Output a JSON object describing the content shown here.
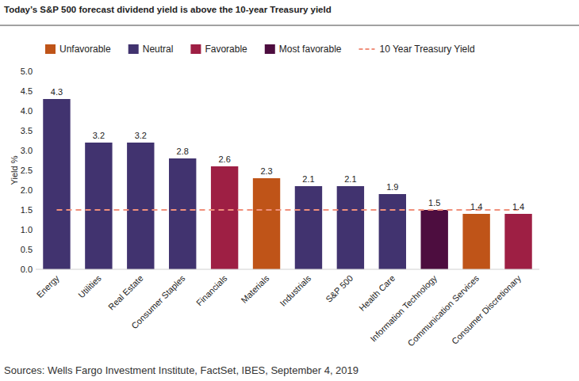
{
  "chart_data": {
    "type": "bar",
    "title": "Today’s S&P 500 forecast dividend yield is above the 10-year Treasury yield",
    "y_label": "Yield %",
    "source": "Sources: Wells Fargo Investment Institute, FactSet, IBES, September 4, 2019",
    "categories": [
      "Energy",
      "Utilities",
      "Real Estate",
      "Consumer Staples",
      "Financials",
      "Materials",
      "Industrials",
      "S&P 500",
      "Health Care",
      "Information Technology",
      "Communication Services",
      "Consumer Discretionary"
    ],
    "series": [
      {
        "name": "Unfavorable",
        "color": "#bf5418",
        "values": [
          null,
          null,
          null,
          null,
          null,
          2.3,
          null,
          null,
          null,
          null,
          1.4,
          null
        ]
      },
      {
        "name": "Neutral",
        "color": "#41336f",
        "values": [
          4.3,
          3.2,
          3.2,
          2.8,
          null,
          null,
          2.1,
          2.1,
          1.9,
          null,
          null,
          null
        ]
      },
      {
        "name": "Favorable",
        "color": "#9e1f44",
        "values": [
          null,
          null,
          null,
          null,
          2.6,
          null,
          null,
          null,
          null,
          null,
          null,
          1.4
        ]
      },
      {
        "name": "Most favorable",
        "color": "#4d0d3f",
        "values": [
          null,
          null,
          null,
          null,
          null,
          null,
          null,
          null,
          null,
          1.5,
          null,
          null
        ]
      },
      {
        "name": "10 Year Treasury Yield",
        "type": "line",
        "line_style": "dashed",
        "color": "#f0907c",
        "values": [
          1.5,
          1.5,
          1.5,
          1.5,
          1.5,
          1.5,
          1.5,
          1.5,
          1.5,
          1.5,
          1.5,
          1.5
        ]
      }
    ],
    "stacked": true,
    "data_labels": true,
    "legend": "top",
    "grid": false,
    "ylim": [
      0,
      5
    ],
    "yticks": [
      {
        "value": 0,
        "label": "0.0"
      },
      {
        "value": 0.5,
        "label": "0.5"
      },
      {
        "value": 1,
        "label": "1.0"
      },
      {
        "value": 1.5,
        "label": "1.5"
      },
      {
        "value": 2,
        "label": "2.0"
      },
      {
        "value": 2.5,
        "label": "2.5"
      },
      {
        "value": 3,
        "label": "3.0"
      },
      {
        "value": 3.5,
        "label": "3.5"
      },
      {
        "value": 4,
        "label": "4.0"
      },
      {
        "value": 4.5,
        "label": "4.5"
      },
      {
        "value": 5,
        "label": "5.0"
      }
    ]
  }
}
